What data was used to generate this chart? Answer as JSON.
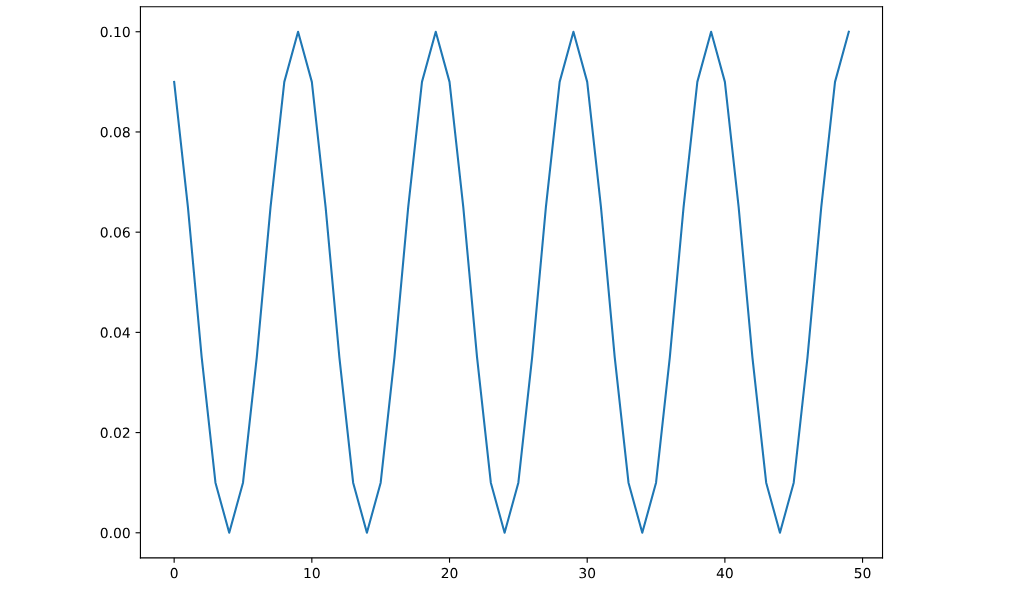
{
  "chart_data": {
    "type": "line",
    "x": [
      0,
      1,
      2,
      3,
      4,
      5,
      6,
      7,
      8,
      9,
      10,
      11,
      12,
      13,
      14,
      15,
      16,
      17,
      18,
      19,
      20,
      21,
      22,
      23,
      24,
      25,
      26,
      27,
      28,
      29,
      30,
      31,
      32,
      33,
      34,
      35,
      36,
      37,
      38,
      39,
      40,
      41,
      42,
      43,
      44,
      45,
      46,
      47,
      48,
      49
    ],
    "series": [
      {
        "color": "#1f77b4",
        "values": [
          0.09,
          0.065,
          0.035,
          0.01,
          0.0,
          0.01,
          0.035,
          0.065,
          0.09,
          0.1,
          0.09,
          0.065,
          0.035,
          0.01,
          0.0,
          0.01,
          0.035,
          0.065,
          0.09,
          0.1,
          0.09,
          0.065,
          0.035,
          0.01,
          0.0,
          0.01,
          0.035,
          0.065,
          0.09,
          0.1,
          0.09,
          0.065,
          0.035,
          0.01,
          0.0,
          0.01,
          0.035,
          0.065,
          0.09,
          0.1,
          0.09,
          0.065,
          0.035,
          0.01,
          0.0,
          0.01,
          0.035,
          0.065,
          0.09,
          0.1
        ]
      }
    ],
    "xlim": [
      -2.45,
      51.45
    ],
    "xticks": [
      0,
      10,
      20,
      30,
      40,
      50
    ],
    "ylim": [
      -0.005,
      0.105
    ],
    "yticks": [
      {
        "value": 0,
        "label": "0.00"
      },
      {
        "value": 0.02,
        "label": "0.02"
      },
      {
        "value": 0.04,
        "label": "0.04"
      },
      {
        "value": 0.06,
        "label": "0.06"
      },
      {
        "value": 0.08,
        "label": "0.08"
      },
      {
        "value": 0.1,
        "label": "0.10"
      }
    ],
    "grid": false,
    "marker": "none",
    "line_style": "solid"
  }
}
